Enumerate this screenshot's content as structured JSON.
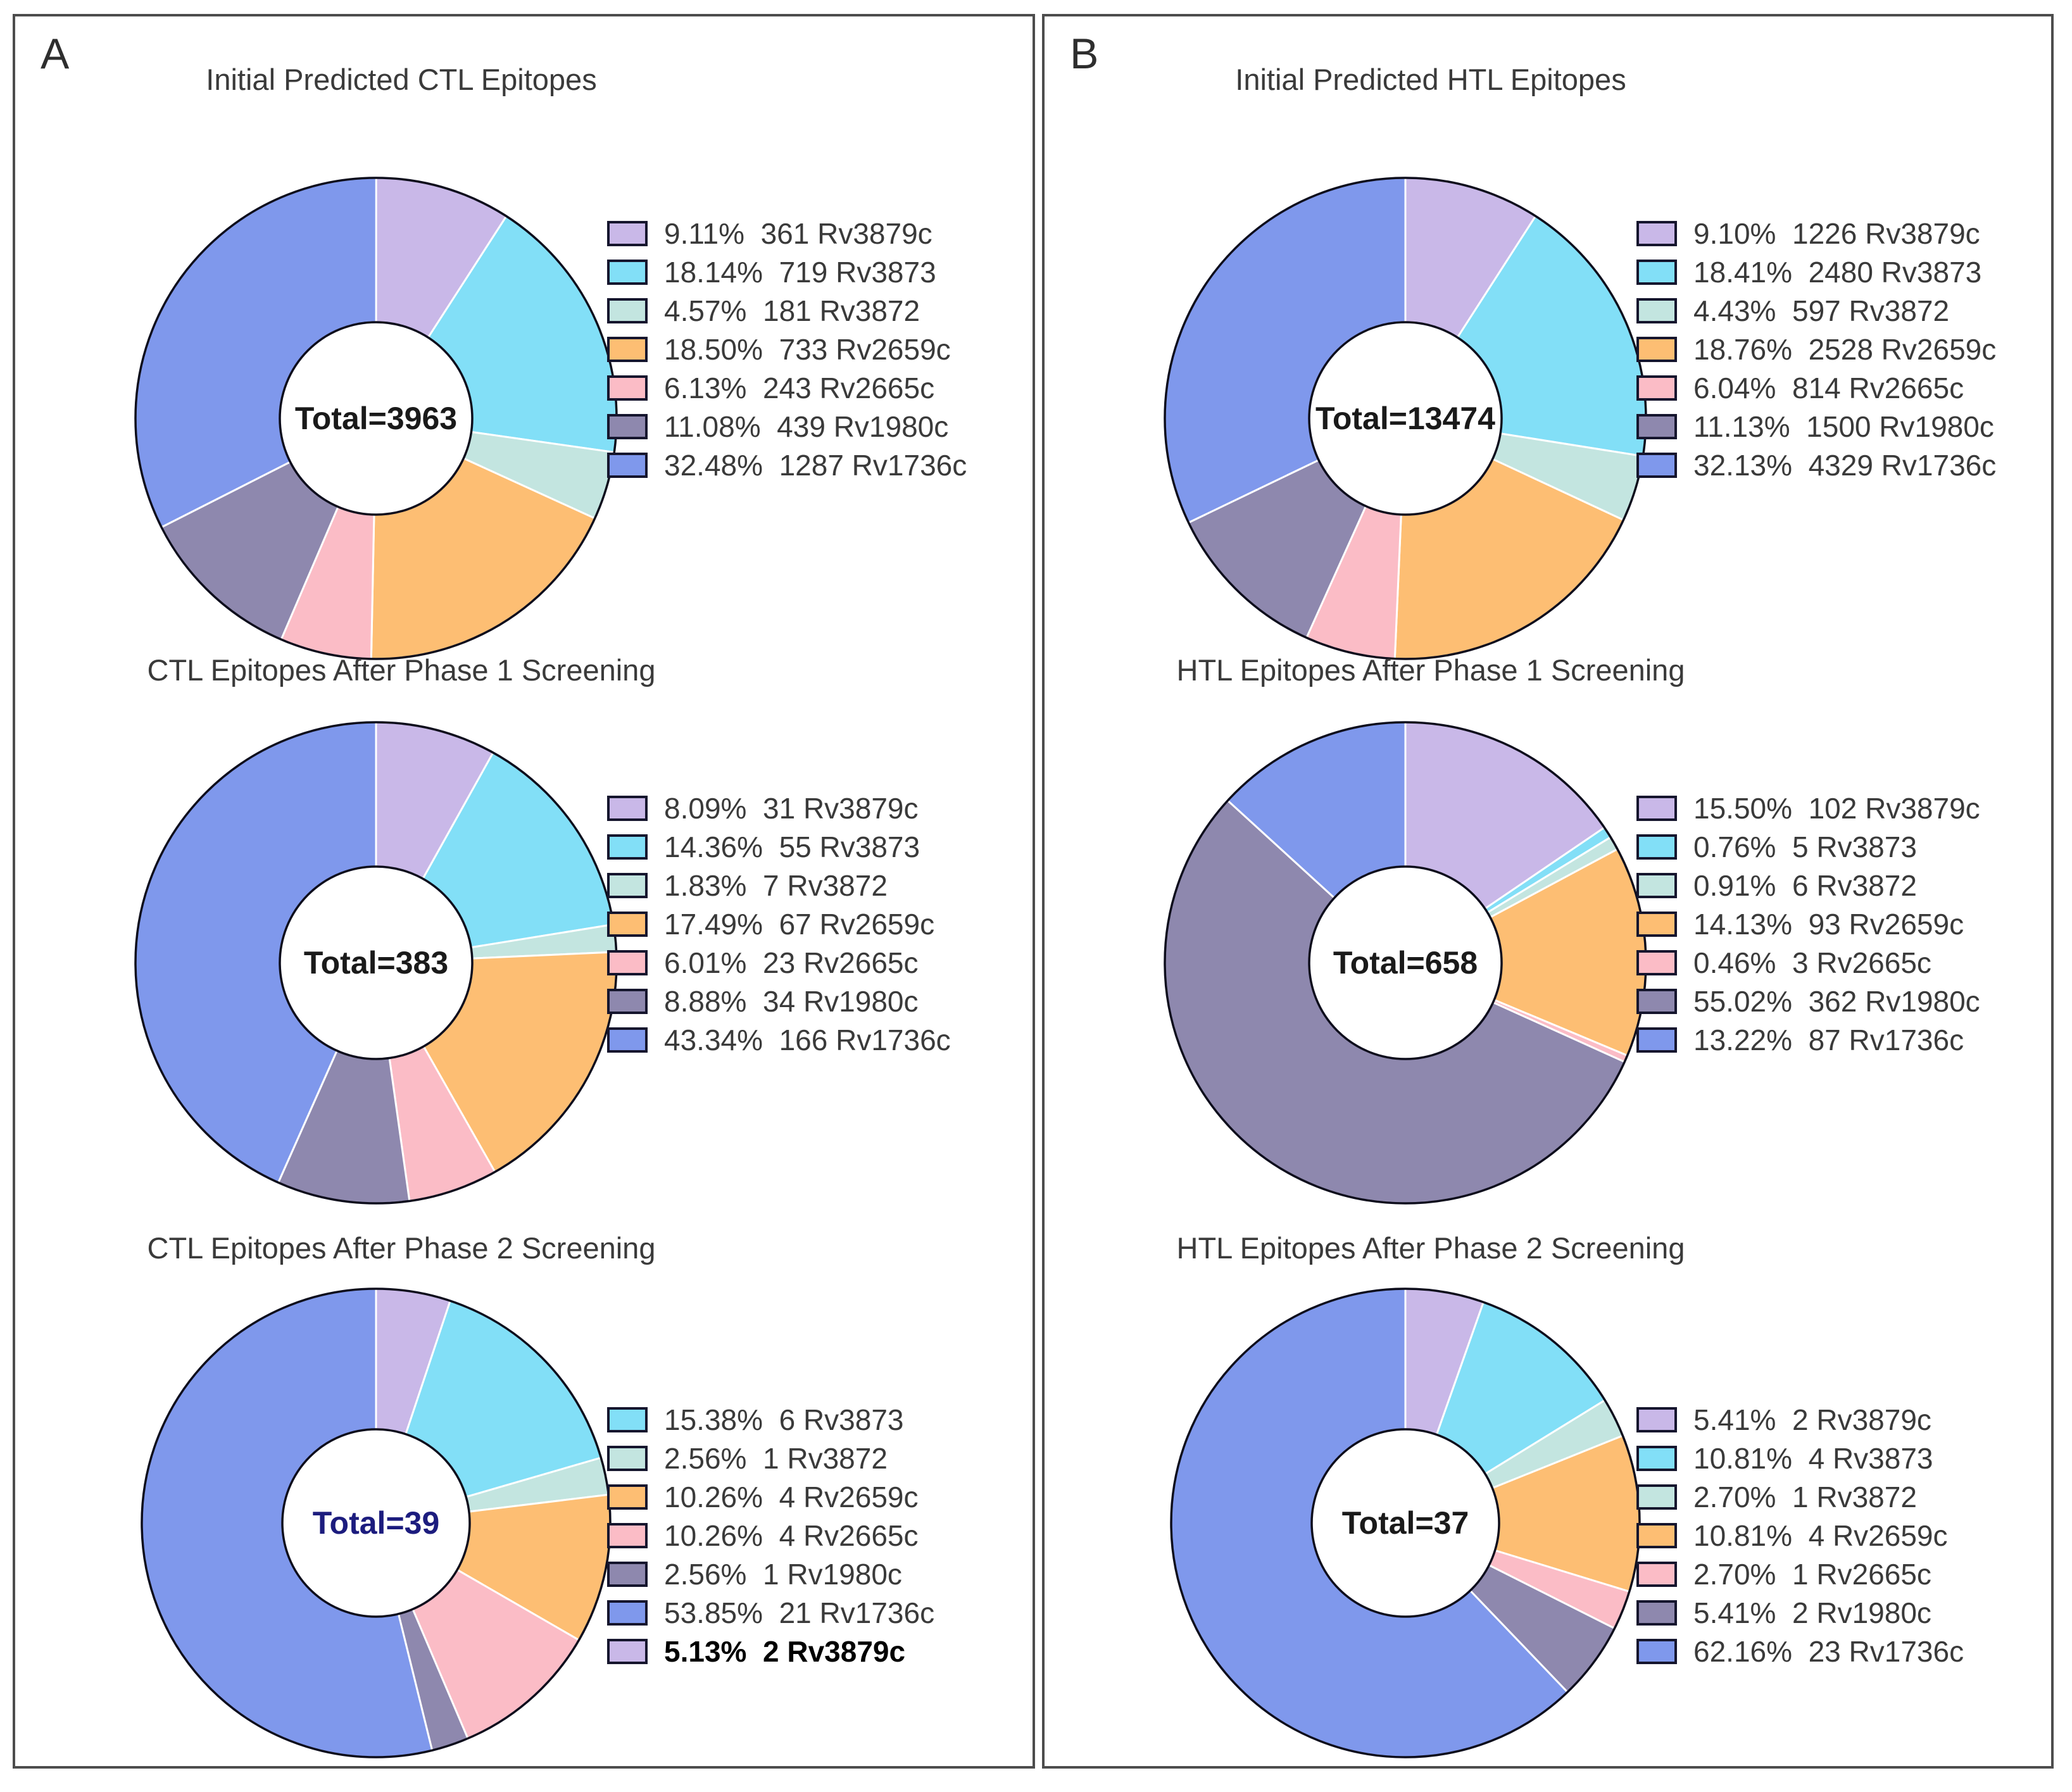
{
  "figure": {
    "panel_a_label": "A",
    "panel_b_label": "B"
  },
  "colors": {
    "lavender": "#c9b8e8",
    "cyan": "#82dff7",
    "teal": "#c3e5e0",
    "orange": "#fdbe73",
    "pink": "#fbbcc6",
    "slate_purple": "#8e88ae",
    "blue": "#7f98ec",
    "outline": "#0d0d1c",
    "separator": "#ffffff",
    "panel_border": "#4d4d4d",
    "text": "#3a3a3a",
    "total_navy": "#1c1c7e"
  },
  "chart_data": [
    {
      "type": "donut",
      "panel": "A",
      "title": "Initial Predicted CTL Epitopes",
      "total": 3963,
      "total_label": "Total=3963",
      "total_color": "#1a1a1a",
      "legend_position": "right",
      "slices": [
        {
          "gene": "Rv3879c",
          "pct": 9.11,
          "count": 361,
          "color": "#c9b8e8"
        },
        {
          "gene": "Rv3873",
          "pct": 18.14,
          "count": 719,
          "color": "#82dff7"
        },
        {
          "gene": "Rv3872",
          "pct": 4.57,
          "count": 181,
          "color": "#c3e5e0"
        },
        {
          "gene": "Rv2659c",
          "pct": 18.5,
          "count": 733,
          "color": "#fdbe73"
        },
        {
          "gene": "Rv2665c",
          "pct": 6.13,
          "count": 243,
          "color": "#fbbcc6"
        },
        {
          "gene": "Rv1980c",
          "pct": 11.08,
          "count": 439,
          "color": "#8e88ae"
        },
        {
          "gene": "Rv1736c",
          "pct": 32.48,
          "count": 1287,
          "color": "#7f98ec"
        }
      ],
      "legend_order": [
        0,
        1,
        2,
        3,
        4,
        5,
        6
      ]
    },
    {
      "type": "donut",
      "panel": "A",
      "title": "CTL Epitopes After Phase 1 Screening",
      "total": 383,
      "total_label": "Total=383",
      "total_color": "#1a1a1a",
      "legend_position": "right",
      "slices": [
        {
          "gene": "Rv3879c",
          "pct": 8.09,
          "count": 31,
          "color": "#c9b8e8"
        },
        {
          "gene": "Rv3873",
          "pct": 14.36,
          "count": 55,
          "color": "#82dff7"
        },
        {
          "gene": "Rv3872",
          "pct": 1.83,
          "count": 7,
          "color": "#c3e5e0"
        },
        {
          "gene": "Rv2659c",
          "pct": 17.49,
          "count": 67,
          "color": "#fdbe73"
        },
        {
          "gene": "Rv2665c",
          "pct": 6.01,
          "count": 23,
          "color": "#fbbcc6"
        },
        {
          "gene": "Rv1980c",
          "pct": 8.88,
          "count": 34,
          "color": "#8e88ae"
        },
        {
          "gene": "Rv1736c",
          "pct": 43.34,
          "count": 166,
          "color": "#7f98ec"
        }
      ],
      "legend_order": [
        0,
        1,
        2,
        3,
        4,
        5,
        6
      ]
    },
    {
      "type": "donut",
      "panel": "A",
      "title": "CTL Epitopes After Phase 2 Screening",
      "total": 39,
      "total_label": "Total=39",
      "total_color": "#1c1c7e",
      "legend_position": "right",
      "slices": [
        {
          "gene": "Rv3879c",
          "pct": 5.13,
          "count": 2,
          "color": "#c9b8e8",
          "legend_bold": true
        },
        {
          "gene": "Rv3873",
          "pct": 15.38,
          "count": 6,
          "color": "#82dff7"
        },
        {
          "gene": "Rv3872",
          "pct": 2.56,
          "count": 1,
          "color": "#c3e5e0"
        },
        {
          "gene": "Rv2659c",
          "pct": 10.26,
          "count": 4,
          "color": "#fdbe73"
        },
        {
          "gene": "Rv2665c",
          "pct": 10.26,
          "count": 4,
          "color": "#fbbcc6"
        },
        {
          "gene": "Rv1980c",
          "pct": 2.56,
          "count": 1,
          "color": "#8e88ae"
        },
        {
          "gene": "Rv1736c",
          "pct": 53.85,
          "count": 21,
          "color": "#7f98ec"
        }
      ],
      "legend_order": [
        1,
        2,
        3,
        4,
        5,
        6,
        0
      ]
    },
    {
      "type": "donut",
      "panel": "B",
      "title": "Initial Predicted HTL Epitopes",
      "total": 13474,
      "total_label": "Total=13474",
      "total_color": "#1a1a1a",
      "legend_position": "right",
      "slices": [
        {
          "gene": "Rv3879c",
          "pct": 9.1,
          "count": 1226,
          "color": "#c9b8e8"
        },
        {
          "gene": "Rv3873",
          "pct": 18.41,
          "count": 2480,
          "color": "#82dff7"
        },
        {
          "gene": "Rv3872",
          "pct": 4.43,
          "count": 597,
          "color": "#c3e5e0"
        },
        {
          "gene": "Rv2659c",
          "pct": 18.76,
          "count": 2528,
          "color": "#fdbe73"
        },
        {
          "gene": "Rv2665c",
          "pct": 6.04,
          "count": 814,
          "color": "#fbbcc6"
        },
        {
          "gene": "Rv1980c",
          "pct": 11.13,
          "count": 1500,
          "color": "#8e88ae"
        },
        {
          "gene": "Rv1736c",
          "pct": 32.13,
          "count": 4329,
          "color": "#7f98ec"
        }
      ],
      "legend_order": [
        0,
        1,
        2,
        3,
        4,
        5,
        6
      ]
    },
    {
      "type": "donut",
      "panel": "B",
      "title": "HTL Epitopes After Phase 1 Screening",
      "total": 658,
      "total_label": "Total=658",
      "total_color": "#1a1a1a",
      "legend_position": "right",
      "slices": [
        {
          "gene": "Rv3879c",
          "pct": 15.5,
          "count": 102,
          "color": "#c9b8e8"
        },
        {
          "gene": "Rv3873",
          "pct": 0.76,
          "count": 5,
          "color": "#82dff7"
        },
        {
          "gene": "Rv3872",
          "pct": 0.91,
          "count": 6,
          "color": "#c3e5e0"
        },
        {
          "gene": "Rv2659c",
          "pct": 14.13,
          "count": 93,
          "color": "#fdbe73"
        },
        {
          "gene": "Rv2665c",
          "pct": 0.46,
          "count": 3,
          "color": "#fbbcc6"
        },
        {
          "gene": "Rv1980c",
          "pct": 55.02,
          "count": 362,
          "color": "#8e88ae"
        },
        {
          "gene": "Rv1736c",
          "pct": 13.22,
          "count": 87,
          "color": "#7f98ec"
        }
      ],
      "legend_order": [
        0,
        1,
        2,
        3,
        4,
        5,
        6
      ]
    },
    {
      "type": "donut",
      "panel": "B",
      "title": "HTL Epitopes After Phase 2 Screening",
      "total": 37,
      "total_label": "Total=37",
      "total_color": "#1a1a1a",
      "legend_position": "right",
      "slices": [
        {
          "gene": "Rv3879c",
          "pct": 5.41,
          "count": 2,
          "color": "#c9b8e8"
        },
        {
          "gene": "Rv3873",
          "pct": 10.81,
          "count": 4,
          "color": "#82dff7"
        },
        {
          "gene": "Rv3872",
          "pct": 2.7,
          "count": 1,
          "color": "#c3e5e0"
        },
        {
          "gene": "Rv2659c",
          "pct": 10.81,
          "count": 4,
          "color": "#fdbe73"
        },
        {
          "gene": "Rv2665c",
          "pct": 2.7,
          "count": 1,
          "color": "#fbbcc6"
        },
        {
          "gene": "Rv1980c",
          "pct": 5.41,
          "count": 2,
          "color": "#8e88ae"
        },
        {
          "gene": "Rv1736c",
          "pct": 62.16,
          "count": 23,
          "color": "#7f98ec"
        }
      ],
      "legend_order": [
        0,
        1,
        2,
        3,
        4,
        5,
        6
      ]
    }
  ]
}
